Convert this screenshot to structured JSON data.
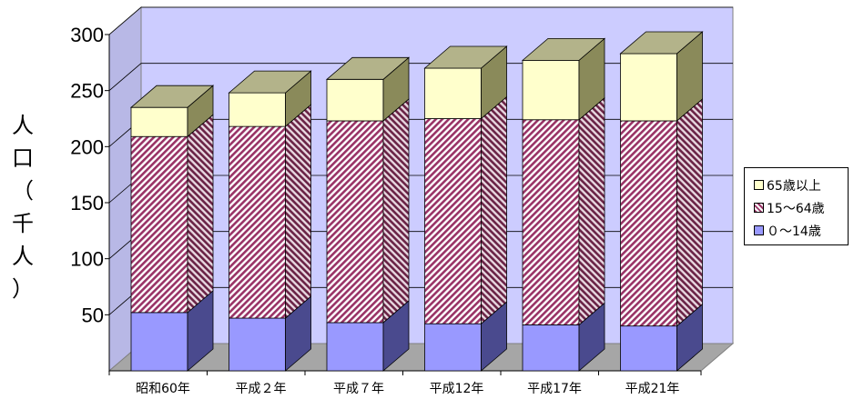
{
  "chart_data": {
    "type": "bar",
    "stacked": true,
    "three_d": true,
    "title": "",
    "xlabel": "",
    "ylabel_chars": [
      "人",
      "口",
      "（",
      "千",
      "人",
      "）"
    ],
    "ylim": [
      0,
      300
    ],
    "yticks": [
      50,
      100,
      150,
      200,
      250,
      300
    ],
    "categories": [
      "昭和60年",
      "平成２年",
      "平成７年",
      "平成12年",
      "平成17年",
      "平成21年"
    ],
    "series": [
      {
        "name": "０～14歳",
        "color": "#9999ff",
        "side_color": "#4a4a8e",
        "values": [
          52,
          47,
          43,
          42,
          41,
          40
        ]
      },
      {
        "name": "15～64歳",
        "color": "#993366",
        "pattern": "diagonal-stripes",
        "values": [
          157,
          171,
          180,
          183,
          183,
          183
        ]
      },
      {
        "name": "65歳以上",
        "color": "#ffffcc",
        "side_color": "#8a8a5a",
        "values": [
          26,
          30,
          37,
          45,
          53,
          60
        ]
      }
    ],
    "legend_position": "right",
    "grid": true,
    "background_color": "#ccccff"
  }
}
